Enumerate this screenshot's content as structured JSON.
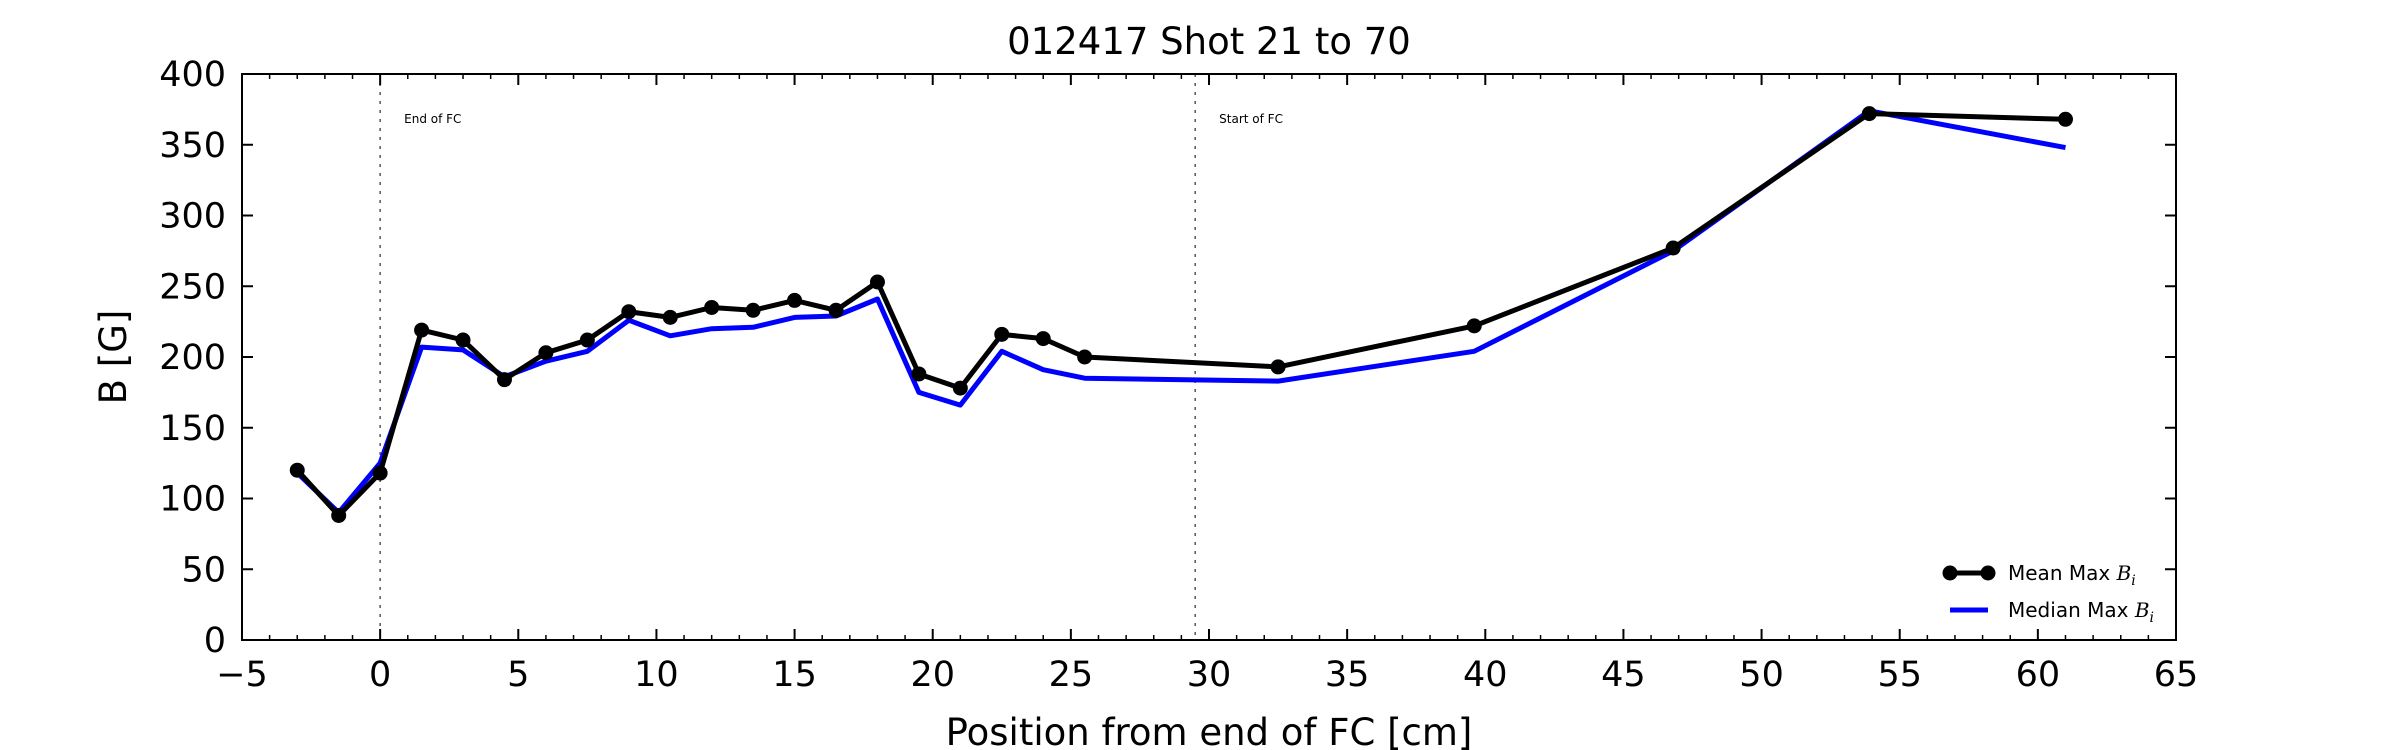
{
  "chart_data": {
    "type": "line",
    "title": "012417 Shot 21 to 70",
    "xlabel": "Position from end of FC [cm]",
    "ylabel": "B [G]",
    "xlim": [
      -5,
      65
    ],
    "ylim": [
      0,
      400
    ],
    "xticks": [
      -5,
      0,
      5,
      10,
      15,
      20,
      25,
      30,
      35,
      40,
      45,
      50,
      55,
      60,
      65
    ],
    "yticks": [
      0,
      50,
      100,
      150,
      200,
      250,
      300,
      350,
      400
    ],
    "x_tick_labels": [
      "−5",
      "0",
      "5",
      "10",
      "15",
      "20",
      "25",
      "30",
      "35",
      "40",
      "45",
      "50",
      "55",
      "60",
      "65"
    ],
    "y_tick_labels": [
      "0",
      "50",
      "100",
      "150",
      "200",
      "250",
      "300",
      "350",
      "400"
    ],
    "grid": false,
    "legend_position": "lower-right",
    "annotations": [
      {
        "text": "End of FC",
        "x": 0
      },
      {
        "text": "Start of FC",
        "x": 29.5
      }
    ],
    "series": [
      {
        "name": "Mean Max B_i",
        "legend_main": "Mean Max ",
        "legend_math": "B",
        "legend_sub": "i",
        "color": "#000000",
        "markers": true,
        "x": [
          -3,
          -1.5,
          0,
          1.5,
          3,
          4.5,
          6,
          7.5,
          9,
          10.5,
          12,
          13.5,
          15,
          16.5,
          18,
          19.5,
          21,
          22.5,
          24,
          25.5,
          32.5,
          39.6,
          46.8,
          53.9,
          61
        ],
        "y": [
          120,
          88,
          118,
          219,
          212,
          184,
          203,
          212,
          232,
          228,
          235,
          233,
          240,
          233,
          253,
          188,
          178,
          216,
          213,
          200,
          193,
          222,
          277,
          372,
          368
        ]
      },
      {
        "name": "Median Max B_i",
        "legend_main": "Median Max ",
        "legend_math": "B",
        "legend_sub": "i",
        "color": "#0000ff",
        "markers": false,
        "x": [
          -3,
          -1.5,
          0,
          1.5,
          3,
          4.5,
          6,
          7.5,
          9,
          10.5,
          12,
          13.5,
          15,
          16.5,
          18,
          19.5,
          21,
          22.5,
          24,
          25.5,
          32.5,
          39.6,
          46.8,
          53.9,
          61
        ],
        "y": [
          118,
          90,
          125,
          207,
          205,
          186,
          197,
          204,
          226,
          215,
          220,
          221,
          228,
          229,
          241,
          175,
          166,
          204,
          191,
          185,
          183,
          204,
          275,
          374,
          348
        ]
      }
    ]
  }
}
